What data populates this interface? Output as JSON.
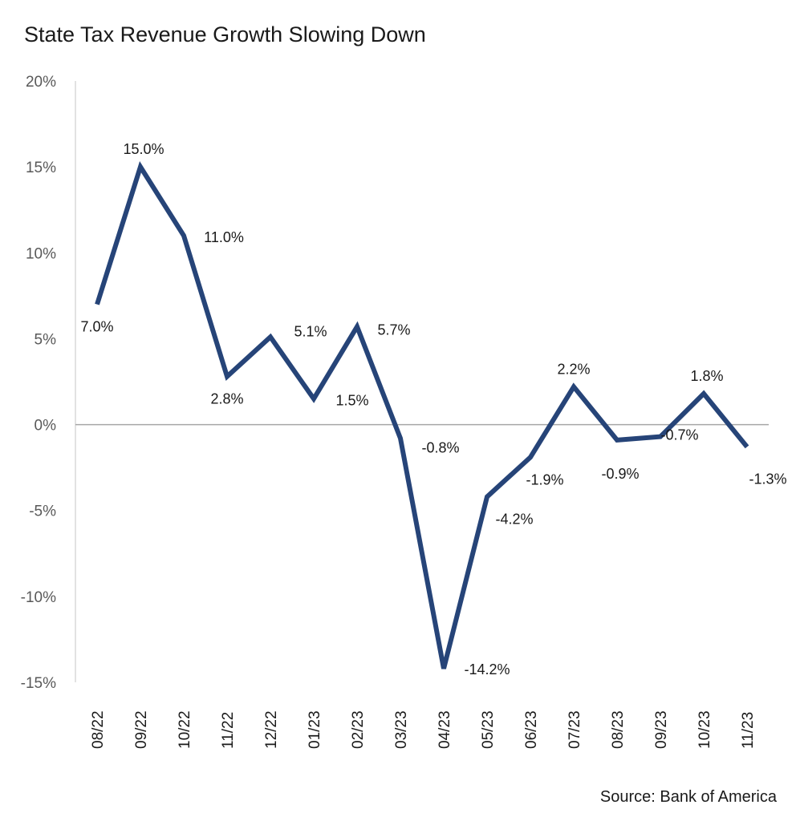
{
  "chart_data": {
    "type": "line",
    "title": "State Tax Revenue Growth Slowing Down",
    "source": "Source: Bank of America",
    "categories": [
      "08/22",
      "09/22",
      "10/22",
      "11/22",
      "12/22",
      "01/23",
      "02/23",
      "03/23",
      "04/23",
      "05/23",
      "06/23",
      "07/23",
      "08/23",
      "09/23",
      "10/23",
      "11/23"
    ],
    "series": [
      {
        "values": [
          7.0,
          15.0,
          11.0,
          2.8,
          5.1,
          1.5,
          5.7,
          -0.8,
          -14.2,
          -4.2,
          -1.9,
          2.2,
          -0.9,
          -0.7,
          1.8,
          -1.3
        ],
        "labels": [
          "7.0%",
          "15.0%",
          "11.0%",
          "2.8%",
          "5.1%",
          "1.5%",
          "5.7%",
          "-0.8%",
          "-14.2%",
          "-4.2%",
          "-1.9%",
          "2.2%",
          "-0.9%",
          "-0.7%",
          "1.8%",
          "-1.3%"
        ]
      }
    ],
    "yticks": [
      20,
      15,
      10,
      5,
      0,
      -5,
      -10,
      -15
    ],
    "ytick_labels": [
      "20%",
      "15%",
      "10%",
      "5%",
      "0%",
      "-5%",
      "-10%",
      "-15%"
    ],
    "ylim": [
      -15,
      20
    ],
    "grid": false,
    "line_color": "#264478"
  }
}
